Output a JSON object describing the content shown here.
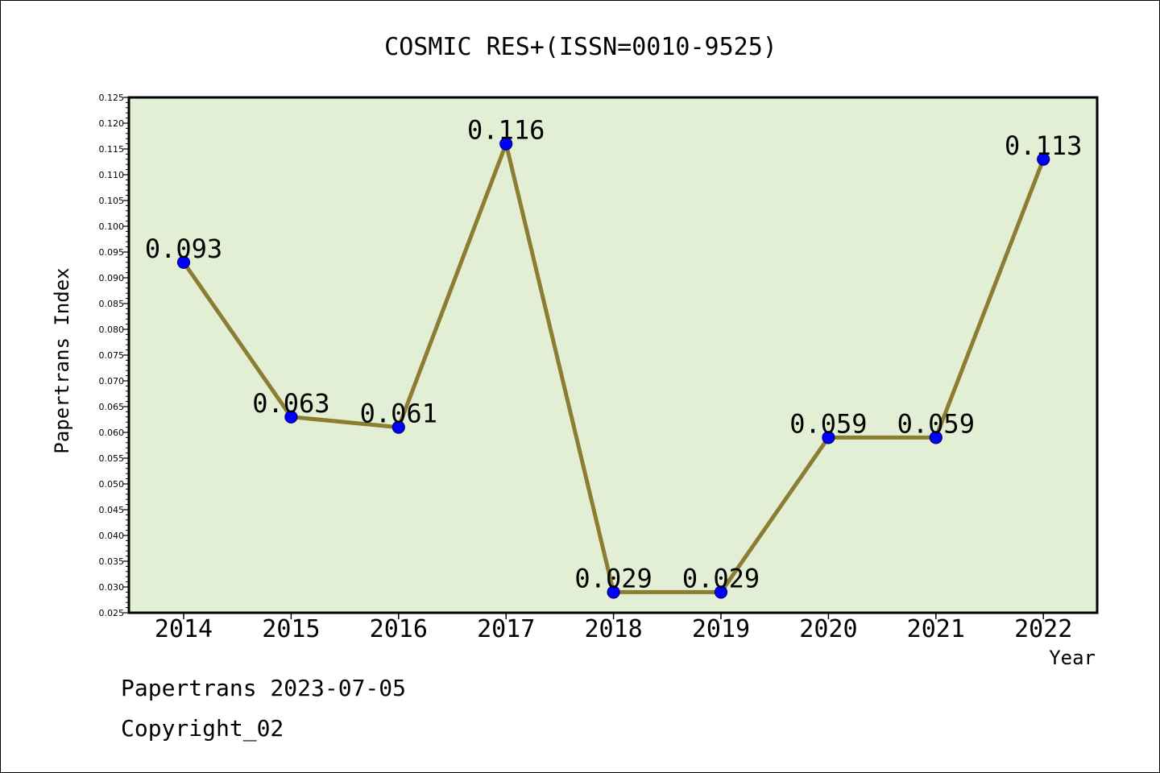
{
  "chart_data": {
    "type": "line",
    "title": "COSMIC RES+(ISSN=0010-9525)",
    "xlabel": "Year",
    "ylabel": "Papertrans Index",
    "categories": [
      "2014",
      "2015",
      "2016",
      "2017",
      "2018",
      "2019",
      "2020",
      "2021",
      "2022"
    ],
    "values": [
      0.093,
      0.063,
      0.061,
      0.116,
      0.029,
      0.029,
      0.059,
      0.059,
      0.113
    ],
    "data_labels": [
      "0.093",
      "0.063",
      "0.061",
      "0.116",
      "0.029",
      "0.029",
      "0.059",
      "0.059",
      "0.113"
    ],
    "ylim": [
      0.025,
      0.125
    ],
    "yticks": [
      "0.025",
      "0.030",
      "0.035",
      "0.040",
      "0.045",
      "0.050",
      "0.055",
      "0.060",
      "0.065",
      "0.070",
      "0.075",
      "0.080",
      "0.085",
      "0.090",
      "0.095",
      "0.100",
      "0.105",
      "0.110",
      "0.115",
      "0.120",
      "0.125"
    ],
    "grid": false,
    "colors": {
      "line": "#8b7d32",
      "marker": "#0000ff",
      "plot_background": "#e2efd5"
    }
  },
  "footer": {
    "line1": "Papertrans 2023-07-05",
    "line2": "Copyright_02"
  }
}
